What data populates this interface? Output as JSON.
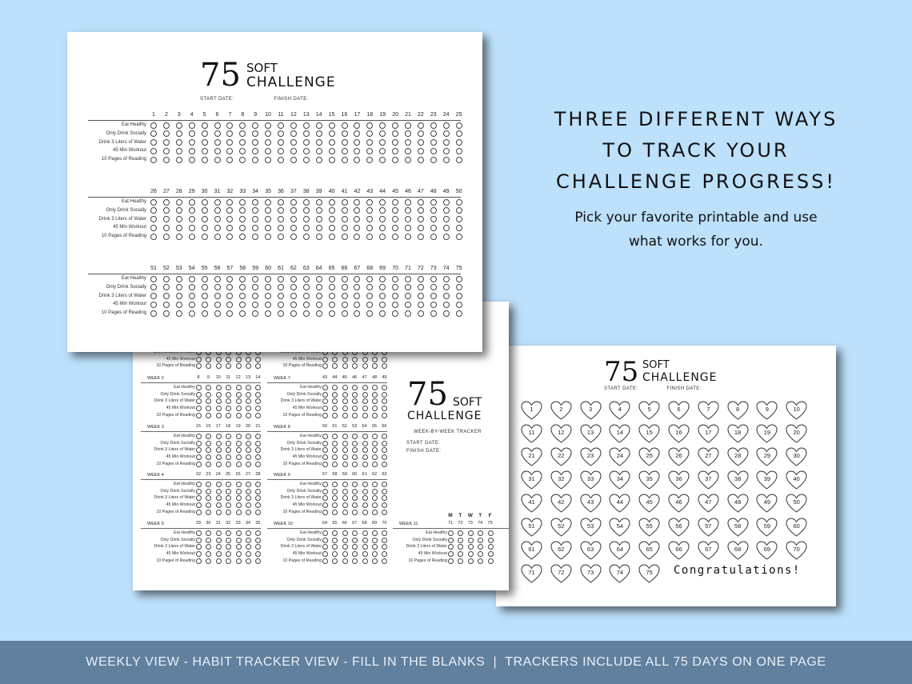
{
  "headline": {
    "line1": "THREE DIFFERENT WAYS",
    "line2": "TO TRACK YOUR",
    "line3": "CHALLENGE PROGRESS!",
    "sub1": "Pick your favorite printable and use",
    "sub2": "what works for you."
  },
  "footer": {
    "text": "WEEKLY VIEW - HABIT TRACKER VIEW - FILL IN THE BLANKS  |  TRACKERS INCLUDE ALL 75 DAYS ON ONE PAGE"
  },
  "logo": {
    "number": "75",
    "soft": "SOFT",
    "challenge": "CHALLENGE"
  },
  "dates": {
    "start": "START DATE:",
    "finish": "FINISH DATE:"
  },
  "habits": [
    "Eat Healthy",
    "Only Drink Socially",
    "Drink 3 Liters of Water",
    "45 Min Workout",
    "10 Pages of Reading"
  ],
  "weekly": {
    "subtitle": "WEEK-BY-WEEK TRACKER",
    "start": "START DATE:",
    "finish": "FINISH DATE:",
    "mtwtf": [
      "M",
      "T",
      "W",
      "T",
      "F"
    ],
    "weeks": [
      {
        "title": "WEEK 2",
        "days": [
          "8",
          "9",
          "10",
          "11",
          "12",
          "13",
          "14"
        ]
      },
      {
        "title": "WEEK 3",
        "days": [
          "15",
          "16",
          "17",
          "18",
          "19",
          "20",
          "21"
        ]
      },
      {
        "title": "WEEK 4",
        "days": [
          "22",
          "23",
          "24",
          "25",
          "26",
          "27",
          "28"
        ]
      },
      {
        "title": "WEEK 5",
        "days": [
          "29",
          "30",
          "31",
          "32",
          "33",
          "34",
          "35"
        ]
      },
      {
        "title": "WEEK 7",
        "days": [
          "43",
          "44",
          "45",
          "46",
          "47",
          "48",
          "49"
        ]
      },
      {
        "title": "WEEK 8",
        "days": [
          "50",
          "51",
          "52",
          "53",
          "54",
          "55",
          "56"
        ]
      },
      {
        "title": "WEEK 9",
        "days": [
          "57",
          "58",
          "59",
          "60",
          "61",
          "62",
          "63"
        ]
      },
      {
        "title": "WEEK 10",
        "days": [
          "64",
          "65",
          "66",
          "67",
          "68",
          "69",
          "70"
        ]
      },
      {
        "title": "WEEK 11",
        "days": [
          "71",
          "72",
          "73",
          "74",
          "75"
        ]
      }
    ],
    "partial_labels": [
      "Drink 3 Liters of Water",
      "45 Min Workout",
      "10 Pages of Reading"
    ]
  },
  "hearts": {
    "congrats": "Congratulations!"
  }
}
